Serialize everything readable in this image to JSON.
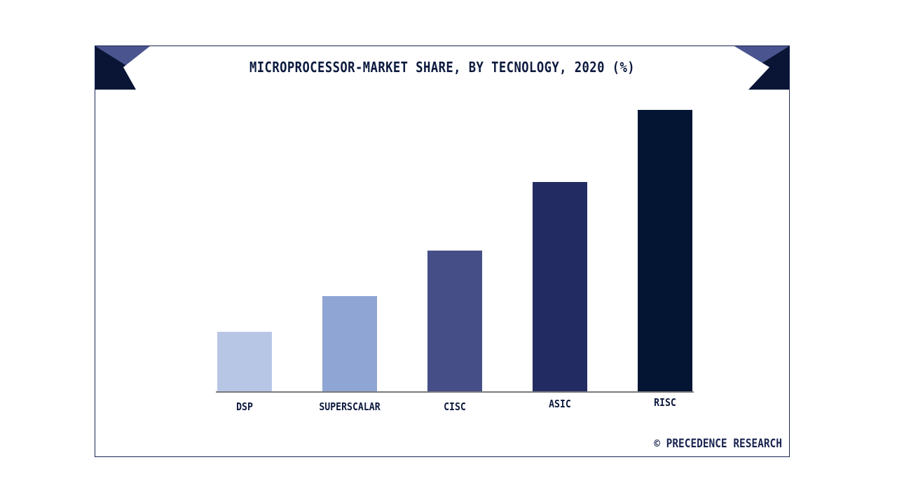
{
  "chart_data": {
    "type": "bar",
    "title": "MICROPROCESSOR-MARKET SHARE, BY TECNOLOGY, 2020 (%)",
    "categories": [
      "DSP",
      "SUPERSCALAR",
      "CISC",
      "ASIC",
      "RISC"
    ],
    "values": [
      8.6,
      13.7,
      20.2,
      30.0,
      40.3
    ],
    "colors": [
      "#b8c6e6",
      "#8fa5d3",
      "#454e86",
      "#232c62",
      "#041433"
    ],
    "xlabel": "",
    "ylabel": "",
    "ylim": [
      0,
      42
    ],
    "grid": false,
    "legend": "none"
  },
  "branding": {
    "credit": "© PRECEDENCE RESEARCH",
    "header_dark": "#0a1535",
    "header_accent": "#4a5590"
  }
}
